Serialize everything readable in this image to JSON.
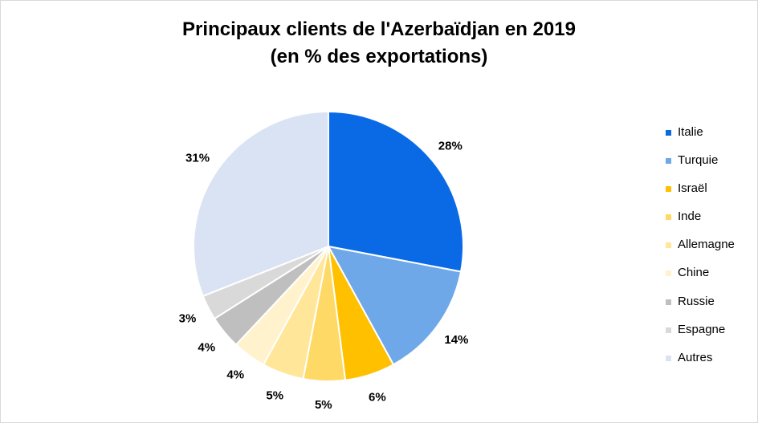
{
  "chart_data": {
    "type": "pie",
    "title": [
      "Principaux clients de l'Azerbaïdjan en 2019",
      "(en % des exportations)"
    ],
    "categories": [
      "Italie",
      "Turquie",
      "Israël",
      "Inde",
      "Allemagne",
      "Chine",
      "Russie",
      "Espagne",
      "Autres"
    ],
    "values": [
      28,
      14,
      6,
      5,
      5,
      4,
      4,
      3,
      31
    ],
    "labels": [
      "28%",
      "14%",
      "6%",
      "5%",
      "5%",
      "4%",
      "4%",
      "3%",
      "31%"
    ],
    "colors": [
      "#0a6ae6",
      "#6fa8e8",
      "#ffc000",
      "#ffd966",
      "#ffe699",
      "#fff2cc",
      "#bfbfbf",
      "#d9d9d9",
      "#dae3f3"
    ],
    "legend_position": "right"
  }
}
